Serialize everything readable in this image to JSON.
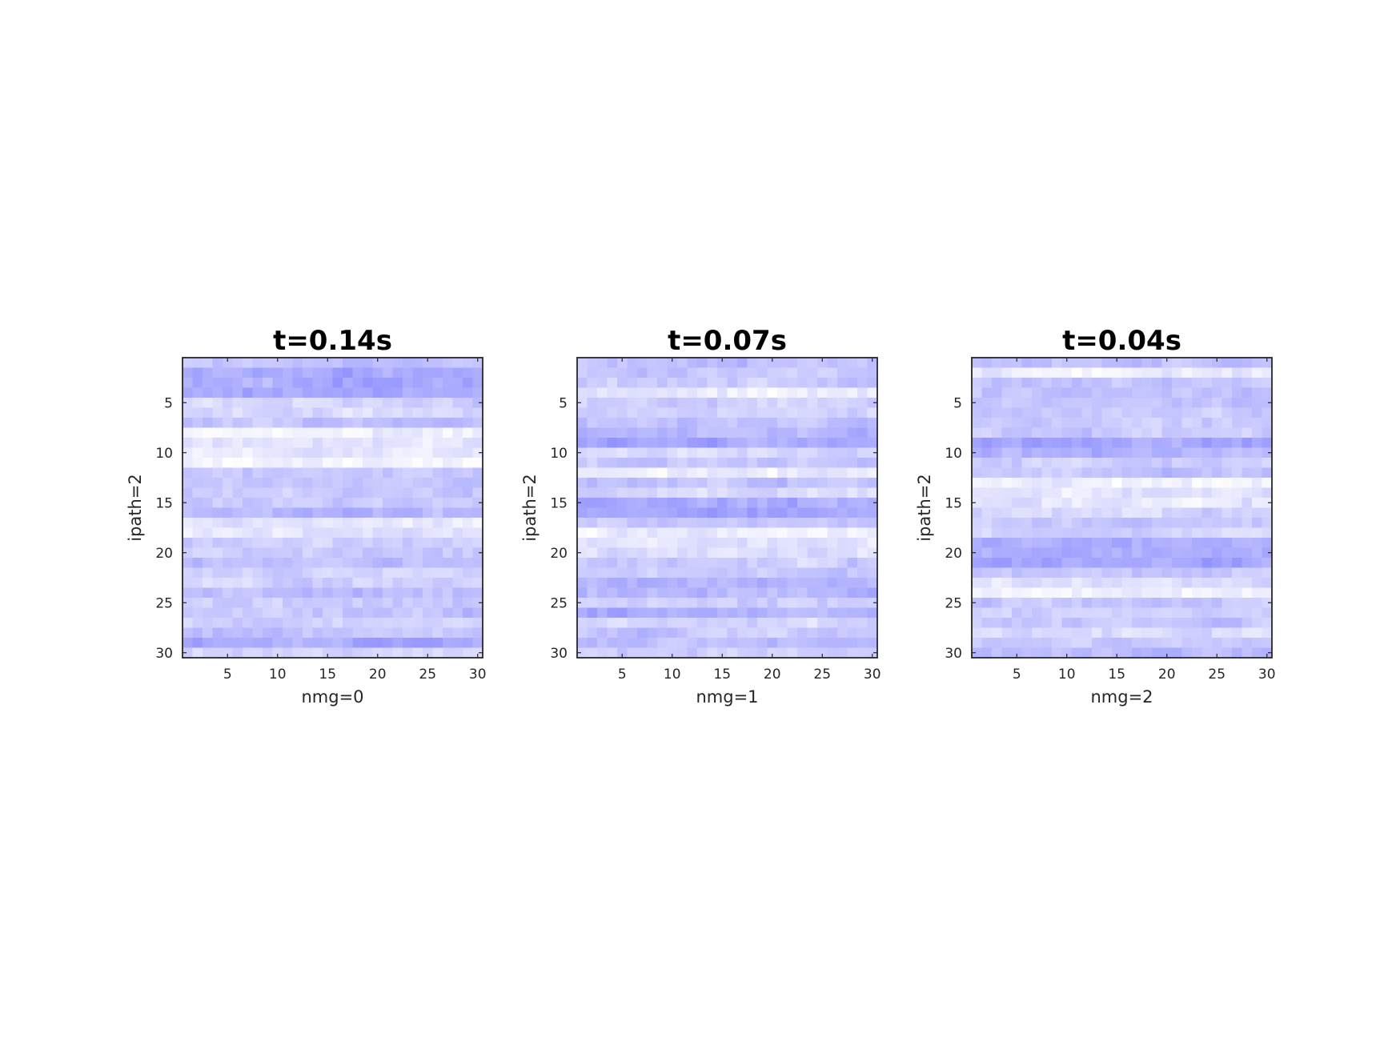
{
  "chart_data": [
    {
      "type": "heatmap",
      "title": "t=0.14s",
      "xlabel": "nmg=0",
      "ylabel": "ipath=2",
      "xlim": [
        0.5,
        30.5
      ],
      "ylim": [
        0.5,
        30.5
      ],
      "y_reversed": true,
      "xticks": [
        5,
        10,
        15,
        20,
        25,
        30
      ],
      "yticks": [
        5,
        10,
        15,
        20,
        25,
        30
      ],
      "grid": false,
      "colors": {
        "low": "#7878ff",
        "high": "#ffffff",
        "above": "#c8c8c8"
      },
      "seed": 11,
      "hot_rows": [
        2,
        3,
        4,
        16,
        29
      ],
      "light_rows": [
        8,
        9,
        10,
        11,
        17,
        18
      ]
    },
    {
      "type": "heatmap",
      "title": "t=0.07s",
      "xlabel": "nmg=1",
      "ylabel": "ipath=2",
      "xlim": [
        0.5,
        30.5
      ],
      "ylim": [
        0.5,
        30.5
      ],
      "y_reversed": true,
      "xticks": [
        5,
        10,
        15,
        20,
        25,
        30
      ],
      "yticks": [
        5,
        10,
        15,
        20,
        25,
        30
      ],
      "grid": false,
      "colors": {
        "low": "#7878ff",
        "high": "#ffffff",
        "above": "#c8c8c8"
      },
      "seed": 23,
      "hot_rows": [
        8,
        9,
        15,
        16,
        23,
        24,
        26
      ],
      "light_rows": [
        4,
        12,
        18,
        19,
        20
      ]
    },
    {
      "type": "heatmap",
      "title": "t=0.04s",
      "xlabel": "nmg=2",
      "ylabel": "ipath=2",
      "xlim": [
        0.5,
        30.5
      ],
      "ylim": [
        0.5,
        30.5
      ],
      "y_reversed": true,
      "xticks": [
        5,
        10,
        15,
        20,
        25,
        30
      ],
      "yticks": [
        5,
        10,
        15,
        20,
        25,
        30
      ],
      "grid": false,
      "colors": {
        "low": "#7878ff",
        "high": "#ffffff",
        "above": "#c8c8c8"
      },
      "seed": 37,
      "hot_rows": [
        9,
        10,
        19,
        20,
        21,
        30
      ],
      "light_rows": [
        2,
        13,
        14,
        15,
        23,
        24
      ]
    }
  ]
}
